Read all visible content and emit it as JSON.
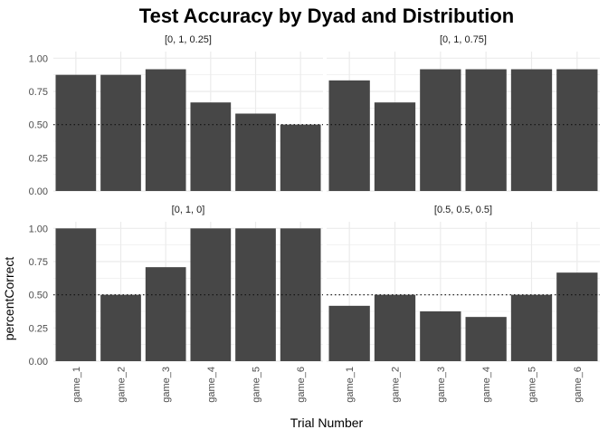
{
  "chart_data": {
    "type": "bar",
    "title": "Test Accuracy by Dyad and Distribution",
    "xlabel": "Trial Number",
    "ylabel": "percentCorrect",
    "ylim": [
      0,
      1.05
    ],
    "yticks": [
      "0.00",
      "0.25",
      "0.50",
      "0.75",
      "1.00"
    ],
    "reference_line": 0.5,
    "grid": true,
    "bar_color": "#474747",
    "grid_color": "#ebebeb",
    "categories": [
      "game_1",
      "game_2",
      "game_3",
      "game_4",
      "game_5",
      "game_6"
    ],
    "panels": [
      {
        "label": "[0, 1, 0.25]",
        "values": [
          0.875,
          0.875,
          0.917,
          0.667,
          0.583,
          0.5
        ]
      },
      {
        "label": "[0, 1, 0.75]",
        "values": [
          0.833,
          0.667,
          0.917,
          0.917,
          0.917,
          0.917
        ]
      },
      {
        "label": "[0, 1, 0]",
        "values": [
          1.0,
          0.5,
          0.708,
          1.0,
          1.0,
          1.0
        ]
      },
      {
        "label": "[0.5, 0.5, 0.5]",
        "values": [
          0.417,
          0.5,
          0.375,
          0.333,
          0.5,
          0.667
        ]
      }
    ]
  }
}
